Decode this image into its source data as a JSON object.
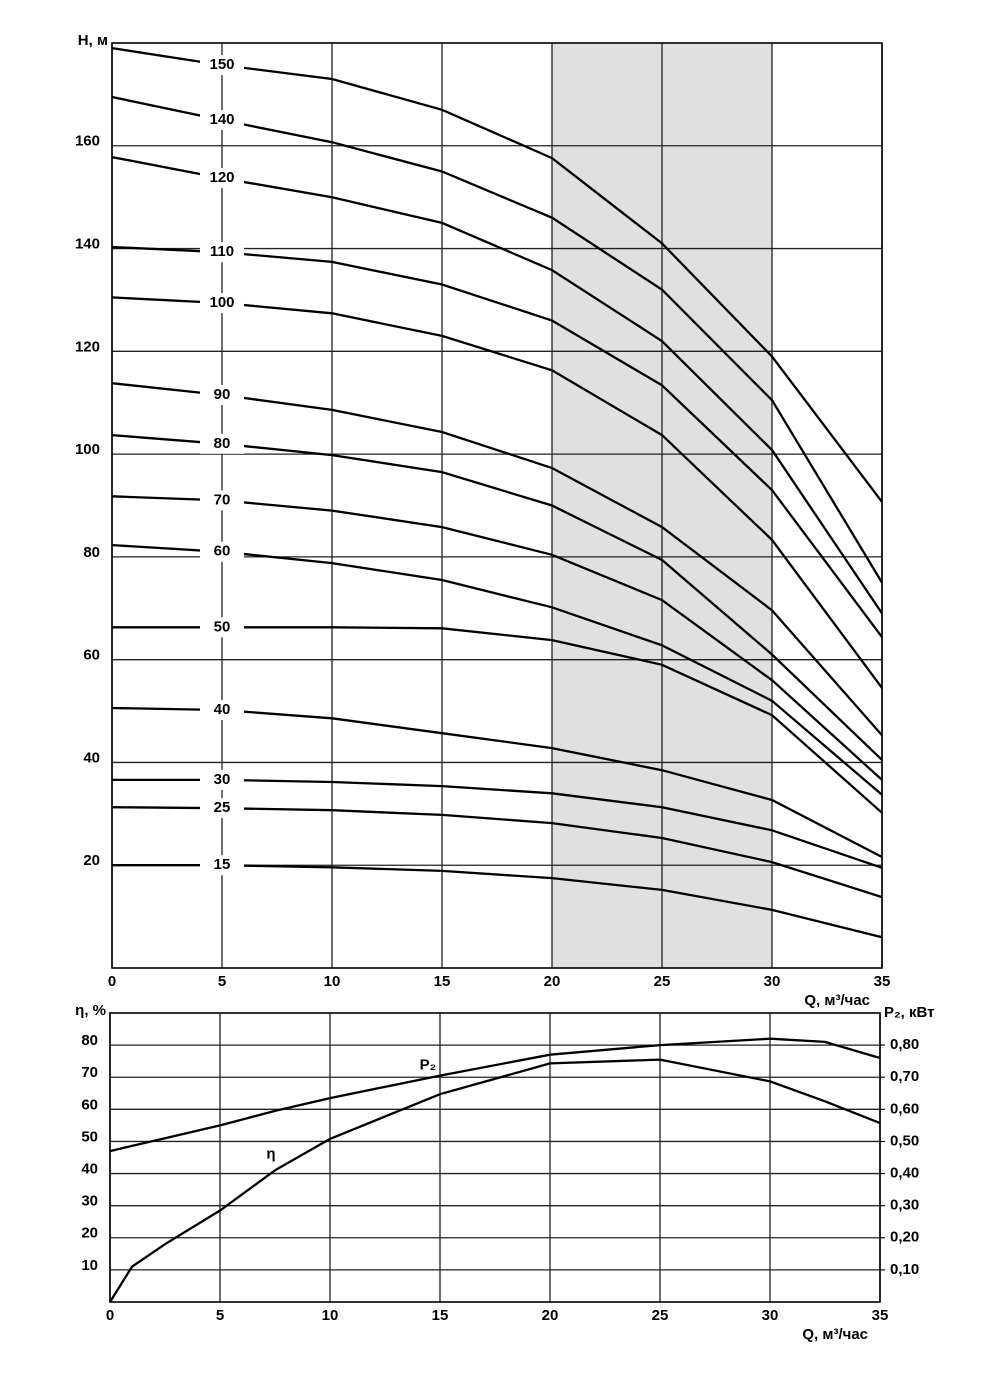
{
  "chart_data": [
    {
      "type": "line",
      "xlabel": "Q, м³/час",
      "ylabel": "H, м",
      "x": [
        0,
        5,
        10,
        15,
        20,
        25,
        30,
        35
      ],
      "xlim": [
        0,
        35
      ],
      "xticks": [
        0,
        5,
        10,
        15,
        20,
        25,
        30,
        35
      ],
      "ylim": [
        0,
        180
      ],
      "yticks": [
        20,
        40,
        60,
        80,
        100,
        120,
        140,
        160
      ],
      "grid": true,
      "color": "#000000",
      "highlight_x": [
        20,
        30
      ],
      "highlight_color": "#e0e0e0",
      "series": [
        {
          "name": "150",
          "values": [
            179,
            175.7,
            173,
            167,
            157.6,
            141,
            119,
            90.7
          ]
        },
        {
          "name": "140",
          "values": [
            169.5,
            165,
            160.7,
            155,
            146,
            132,
            110.5,
            75
          ]
        },
        {
          "name": "120",
          "values": [
            157.8,
            153.7,
            150,
            145,
            135.8,
            122,
            100.8,
            69
          ]
        },
        {
          "name": "110",
          "values": [
            140.3,
            139.3,
            137.4,
            133,
            126,
            113.4,
            93,
            64.4
          ]
        },
        {
          "name": "100",
          "values": [
            130.5,
            129.4,
            127.4,
            123,
            116.3,
            103.7,
            83.3,
            54.5
          ]
        },
        {
          "name": "90",
          "values": [
            113.8,
            111.5,
            108.6,
            104.3,
            97.3,
            85.8,
            69.6,
            45.3
          ]
        },
        {
          "name": "80",
          "values": [
            103.7,
            102,
            99.8,
            96.5,
            90,
            79.4,
            61,
            40.5
          ]
        },
        {
          "name": "70",
          "values": [
            91.8,
            91,
            89,
            85.8,
            80.4,
            71.6,
            56,
            36.6
          ]
        },
        {
          "name": "60",
          "values": [
            82.3,
            81,
            78.8,
            75.5,
            70.2,
            62.8,
            52,
            33.7
          ]
        },
        {
          "name": "50",
          "values": [
            66.3,
            66.3,
            66.3,
            66.1,
            63.8,
            59,
            49.2,
            30.2
          ]
        },
        {
          "name": "40",
          "values": [
            50.6,
            50.2,
            48.6,
            45.7,
            42.8,
            38.5,
            32.7,
            21.6
          ]
        },
        {
          "name": "30",
          "values": [
            36.6,
            36.6,
            36.2,
            35.4,
            34,
            31.3,
            26.8,
            19.5
          ]
        },
        {
          "name": "25",
          "values": [
            31.3,
            31.1,
            30.7,
            29.8,
            28.2,
            25.3,
            20.6,
            13.8
          ]
        },
        {
          "name": "15",
          "values": [
            20,
            20,
            19.6,
            18.9,
            17.5,
            15.2,
            11.3,
            6
          ]
        }
      ]
    },
    {
      "type": "line",
      "xlabel": "Q, м³/час",
      "ylabel": "η, %",
      "y2label": "P₂, кВт",
      "x": [
        0,
        1,
        2.5,
        5,
        7.5,
        10,
        15,
        20,
        25,
        30,
        32.5,
        35
      ],
      "xlim": [
        0,
        35
      ],
      "xticks": [
        0,
        5,
        10,
        15,
        20,
        25,
        30,
        35
      ],
      "ylim": [
        0,
        90
      ],
      "yticks": [
        10,
        20,
        30,
        40,
        50,
        60,
        70,
        80
      ],
      "y2lim": [
        0,
        0.9
      ],
      "y2ticks": [
        {
          "value": 0.1,
          "label": "0,10"
        },
        {
          "value": 0.2,
          "label": "0,20"
        },
        {
          "value": 0.3,
          "label": "0,30"
        },
        {
          "value": 0.4,
          "label": "0,40"
        },
        {
          "value": 0.5,
          "label": "0,50"
        },
        {
          "value": 0.6,
          "label": "0,60"
        },
        {
          "value": 0.7,
          "label": "0,70"
        },
        {
          "value": 0.8,
          "label": "0,80"
        }
      ],
      "grid": true,
      "color": "#000000",
      "series": [
        {
          "name": "η",
          "values": [
            0,
            11,
            18,
            28.5,
            41,
            50.8,
            64.7,
            74.3,
            75.5,
            68.7,
            62.5,
            55.7
          ]
        },
        {
          "name": "P₂",
          "axis": "y2",
          "values": [
            0.47,
            0.486,
            0.51,
            0.55,
            0.595,
            0.635,
            0.705,
            0.77,
            0.8,
            0.82,
            0.81,
            0.76
          ]
        }
      ]
    }
  ]
}
